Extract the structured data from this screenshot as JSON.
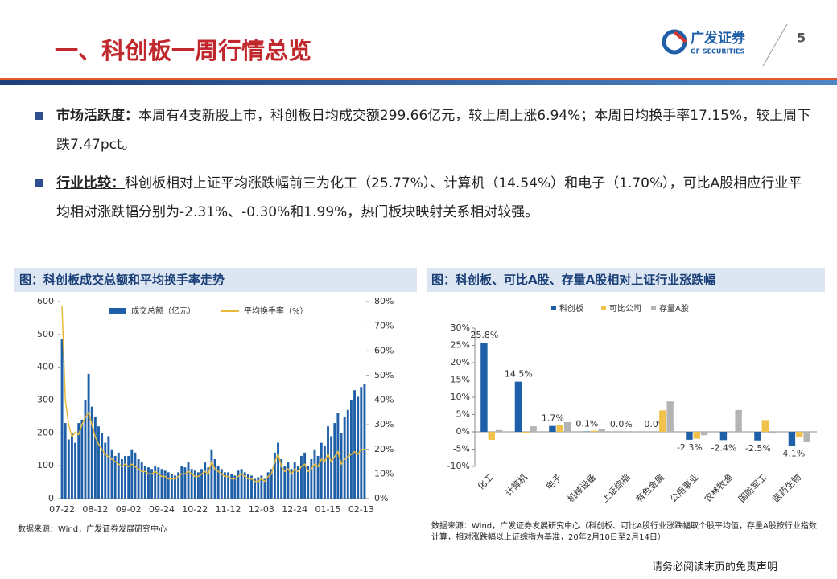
{
  "header": {
    "title": "一、科创板一周行情总览",
    "logo_cn": "广发证券",
    "logo_en": "GF SECURITIES",
    "page": "5"
  },
  "bullets": [
    {
      "lead": "市场活跃度：",
      "text": "本周有4支新股上市，科创板日均成交额299.66亿元，较上周上涨6.94%；本周日均换手率17.15%，较上周下跌7.47pct。"
    },
    {
      "lead": "行业比较：",
      "text": "科创板相对上证平均涨跌幅前三为化工（25.77%）、计算机（14.54%）和电子（1.70%），可比A股相应行业平均相对涨跌幅分别为-2.31%、-0.30%和1.99%，热门板块映射关系相对较强。"
    }
  ],
  "chart_data": [
    {
      "type": "combo",
      "title": "图：科创板成交总额和平均换手率走势",
      "categories": [
        "07-22",
        null,
        null,
        null,
        null,
        null,
        null,
        null,
        null,
        null,
        "08-12",
        null,
        null,
        null,
        null,
        null,
        null,
        null,
        null,
        null,
        "09-02",
        null,
        null,
        null,
        null,
        null,
        null,
        null,
        null,
        null,
        "09-24",
        null,
        null,
        null,
        null,
        null,
        null,
        null,
        null,
        null,
        "10-22",
        null,
        null,
        null,
        null,
        null,
        null,
        null,
        null,
        null,
        "11-12",
        null,
        null,
        null,
        null,
        null,
        null,
        null,
        null,
        null,
        "12-03",
        null,
        null,
        null,
        null,
        null,
        null,
        null,
        null,
        null,
        "12-24",
        null,
        null,
        null,
        null,
        null,
        null,
        null,
        null,
        null,
        "01-15",
        null,
        null,
        null,
        null,
        null,
        null,
        null,
        null,
        null,
        "02-13",
        null
      ],
      "series": [
        {
          "name": "成交总额（亿元）",
          "color": "#1f5fa8",
          "chart": "bar",
          "values": [
            485,
            230,
            180,
            200,
            170,
            230,
            240,
            300,
            380,
            280,
            250,
            220,
            200,
            170,
            190,
            150,
            130,
            140,
            120,
            130,
            130,
            150,
            140,
            120,
            110,
            100,
            95,
            90,
            100,
            95,
            90,
            85,
            80,
            75,
            70,
            80,
            100,
            95,
            110,
            90,
            85,
            80,
            90,
            110,
            95,
            150,
            120,
            100,
            90,
            80,
            80,
            75,
            70,
            85,
            90,
            80,
            75,
            70,
            60,
            65,
            70,
            60,
            80,
            90,
            140,
            170,
            120,
            100,
            110,
            90,
            110,
            100,
            130,
            140,
            100,
            120,
            150,
            130,
            170,
            160,
            220,
            190,
            230,
            260,
            200,
            250,
            270,
            300,
            330,
            310,
            340,
            350
          ]
        },
        {
          "name": "平均换手率（%）",
          "color": "#e8b83a",
          "chart": "line",
          "axis": "y2",
          "values": [
            78,
            40,
            30,
            25,
            27,
            26,
            30,
            33,
            35,
            30,
            25,
            22,
            20,
            18,
            17,
            16,
            15,
            14,
            13,
            14,
            13,
            14,
            13,
            12,
            11,
            11,
            10,
            10,
            11,
            10,
            9,
            9,
            8,
            8,
            8,
            9,
            10,
            10,
            11,
            10,
            9,
            9,
            10,
            11,
            10,
            15,
            12,
            11,
            10,
            9,
            9,
            8,
            8,
            9,
            10,
            9,
            8,
            8,
            7,
            7,
            8,
            7,
            9,
            10,
            15,
            18,
            13,
            11,
            12,
            10,
            12,
            11,
            13,
            14,
            11,
            12,
            14,
            13,
            16,
            15,
            18,
            15,
            17,
            19,
            14,
            16,
            17,
            18,
            19,
            18,
            20,
            20
          ]
        }
      ],
      "ylim": [
        0,
        600
      ],
      "yticks": [
        0,
        100,
        200,
        300,
        400,
        500,
        600
      ],
      "y2lim": [
        0,
        80
      ],
      "y2ticks": [
        {
          "value": 0,
          "label": "0%"
        },
        {
          "value": 10,
          "label": "10%"
        },
        {
          "value": 20,
          "label": "20%"
        },
        {
          "value": 30,
          "label": "30%"
        },
        {
          "value": 40,
          "label": "40%"
        },
        {
          "value": 50,
          "label": "50%"
        },
        {
          "value": 60,
          "label": "60%"
        },
        {
          "value": 70,
          "label": "70%"
        },
        {
          "value": 80,
          "label": "80%"
        }
      ],
      "source": "数据来源：Wind，广发证券发展研究中心"
    },
    {
      "type": "bar",
      "title": "图：科创板、可比A股、存量A股相对上证行业涨跌幅",
      "categories": [
        "化工",
        "计算机",
        "电子",
        "机械设备",
        "上证综指",
        "有色金属",
        "公用事业",
        "农林牧渔",
        "国防军工",
        "医药生物"
      ],
      "series": [
        {
          "name": "科创板",
          "color": "#1f5fa8",
          "values": [
            25.8,
            14.5,
            1.7,
            0.1,
            0.0,
            0.0,
            -2.3,
            -2.4,
            -2.5,
            -4.1
          ],
          "value_labels": [
            "25.8%",
            "14.5%",
            "1.7%",
            "0.1%",
            "0.0%",
            "0.0%",
            "-2.3%",
            "-2.4%",
            "-2.5%",
            "-4.1%"
          ]
        },
        {
          "name": "可比公司",
          "color": "#f0c14b",
          "values": [
            -2.31,
            -0.3,
            1.99,
            0.3,
            0,
            6.2,
            -2.0,
            0,
            3.4,
            -1.5
          ]
        },
        {
          "name": "存量A股",
          "color": "#b4b4b4",
          "values": [
            0.5,
            1.6,
            2.8,
            0.9,
            0,
            8.8,
            -1.0,
            6.3,
            -0.5,
            -3.0
          ]
        }
      ],
      "ylim": [
        -10,
        30
      ],
      "yticks": [
        {
          "value": -10,
          "label": "-10%"
        },
        {
          "value": -5,
          "label": "-5%"
        },
        {
          "value": 0,
          "label": "0%"
        },
        {
          "value": 5,
          "label": "5%"
        },
        {
          "value": 10,
          "label": "10%"
        },
        {
          "value": 15,
          "label": "15%"
        },
        {
          "value": 20,
          "label": "20%"
        },
        {
          "value": 25,
          "label": "25%"
        },
        {
          "value": 30,
          "label": "30%"
        }
      ],
      "source": "数据来源：Wind，广发证券发展研究中心（科创板、可比A股行业涨跌幅取个股平均值，存量A股按行业指数计算，相对涨跌幅以上证综指为基准，20年2月10日至2月14日）"
    }
  ],
  "footer": "请务必阅读末页的免责声明"
}
